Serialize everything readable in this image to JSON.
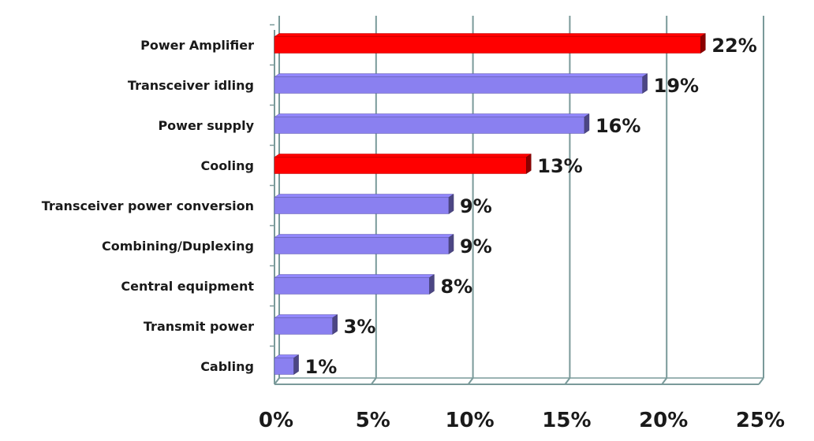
{
  "chart_data": {
    "type": "bar",
    "orientation": "horizontal",
    "title": "",
    "xlabel": "",
    "ylabel": "",
    "categories": [
      "Power Amplifier",
      "Transceiver idling",
      "Power supply",
      "Cooling",
      "Transceiver power conversion",
      "Combining/Duplexing",
      "Central equipment",
      "Transmit power",
      "Cabling"
    ],
    "values": [
      22,
      19,
      16,
      13,
      9,
      9,
      8,
      3,
      1
    ],
    "value_labels": [
      "22%",
      "19%",
      "16%",
      "13%",
      "9%",
      "9%",
      "8%",
      "3%",
      "1%"
    ],
    "highlighted": [
      true,
      false,
      false,
      true,
      false,
      false,
      false,
      false,
      false
    ],
    "xlim": [
      0,
      25
    ],
    "x_ticks": [
      0,
      5,
      10,
      15,
      20,
      25
    ],
    "x_tick_labels": [
      "0%",
      "5%",
      "10%",
      "15%",
      "20%",
      "25%"
    ],
    "grid": true,
    "legend": "none",
    "colors": {
      "highlight": "#ff0000",
      "normal": "#8a80f0",
      "grid": "#7a9a9a"
    }
  }
}
